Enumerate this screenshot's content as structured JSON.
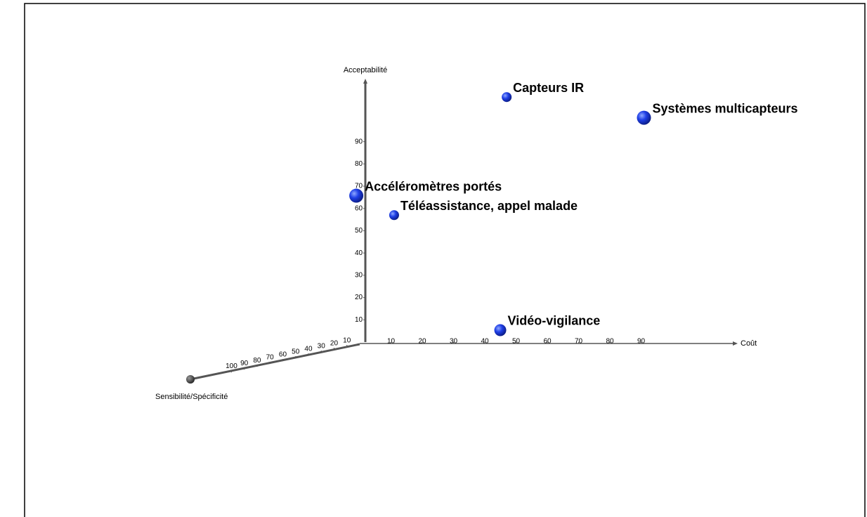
{
  "chart_data": {
    "type": "scatter3d",
    "xlabel": "Coût",
    "ylabel": "Acceptabilité",
    "zlabel": "Sensibilité/Spécificité",
    "color": "#1f3fe6",
    "xlim": [
      0,
      120
    ],
    "ylim": [
      0,
      117
    ],
    "zlim": [
      0,
      132
    ],
    "xticks": [
      10,
      20,
      30,
      40,
      50,
      60,
      70,
      80,
      90
    ],
    "yticks": [
      10,
      20,
      30,
      40,
      50,
      60,
      70,
      80,
      90
    ],
    "zticks": [
      10,
      20,
      30,
      40,
      50,
      60,
      70,
      80,
      90,
      100
    ],
    "points": [
      {
        "label": "Capteurs IR",
        "x": 47,
        "y": 110,
        "z": 0
      },
      {
        "label": "Systèmes multicapteurs",
        "x": 95,
        "y": 102,
        "z": 10
      },
      {
        "label": "Accéléromètres portés",
        "x": 3,
        "y": 67,
        "z": 10
      },
      {
        "label": "Téléassistance, appel malade",
        "x": 11,
        "y": 57,
        "z": 0
      },
      {
        "label": "Vidéo-vigilance",
        "x": 47,
        "y": 6,
        "z": 5
      }
    ]
  }
}
